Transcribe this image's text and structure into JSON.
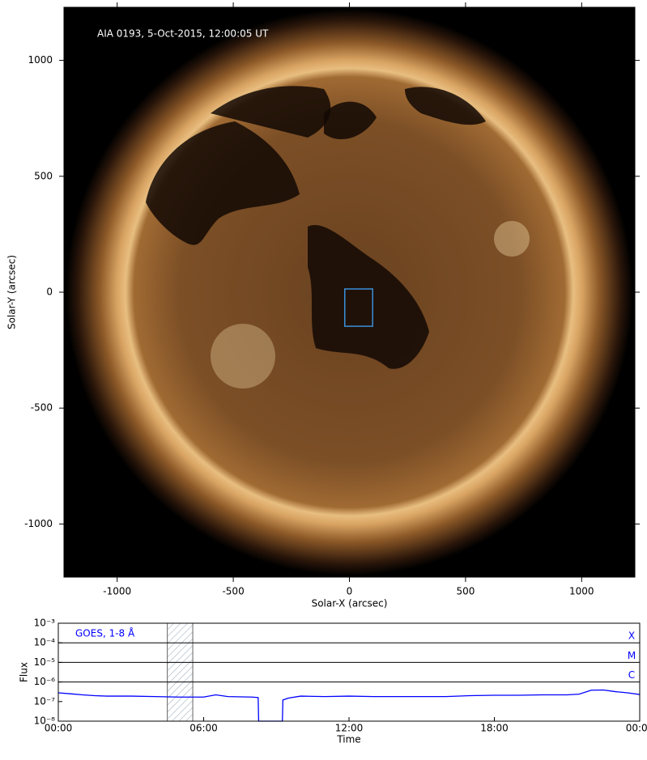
{
  "chart_data": [
    {
      "type": "image",
      "title": "AIA 0193, 5-Oct-2015, 12:00:05 UT",
      "xlabel": "Solar-X (arcsec)",
      "ylabel": "Solar-Y (arcsec)",
      "xlim": [
        -1229,
        1229
      ],
      "ylim": [
        -1229,
        1229
      ],
      "xticks": [
        -1000,
        -500,
        0,
        500,
        1000
      ],
      "yticks": [
        -1000,
        -500,
        0,
        500,
        1000
      ],
      "region": {
        "x": [
          -20,
          100
        ],
        "y": [
          -147,
          14
        ],
        "color": "#3a8fd9"
      }
    },
    {
      "type": "line",
      "xlabel": "Time",
      "ylabel": "Flux",
      "log_y": true,
      "xlim": [
        0,
        24
      ],
      "ylim": [
        1e-08,
        0.001
      ],
      "xticks": [
        {
          "value": 0,
          "label": "00:00"
        },
        {
          "value": 6,
          "label": "06:00"
        },
        {
          "value": 12,
          "label": "12:00"
        },
        {
          "value": 18,
          "label": "18:00"
        },
        {
          "value": 24,
          "label": "00:00"
        }
      ],
      "yticks": [
        {
          "value": 1e-08,
          "label": "10⁻⁸"
        },
        {
          "value": 1e-07,
          "label": "10⁻⁷"
        },
        {
          "value": 1e-06,
          "label": "10⁻⁶"
        },
        {
          "value": 1e-05,
          "label": "10⁻⁵"
        },
        {
          "value": 0.0001,
          "label": "10⁻⁴"
        },
        {
          "value": 0.001,
          "label": "10⁻³"
        }
      ],
      "flare_levels": [
        {
          "value": 0.0001,
          "label": "X"
        },
        {
          "value": 1e-05,
          "label": "M"
        },
        {
          "value": 1e-06,
          "label": "C"
        }
      ],
      "shaded": [
        4.5,
        5.55
      ],
      "x": [
        0,
        0.5,
        1,
        1.5,
        2,
        3,
        4,
        5,
        6,
        6.5,
        7,
        8,
        8.25,
        8.27,
        9.25,
        9.27,
        9.5,
        10,
        11,
        12,
        13,
        14,
        15,
        16,
        17,
        18,
        19,
        20,
        21,
        21.5,
        22,
        22.5,
        23,
        23.5,
        24
      ],
      "series": [
        {
          "name": "GOES, 1-8 Å",
          "color": "#0000ff",
          "values": [
            2.8e-07,
            2.5e-07,
            2.2e-07,
            2e-07,
            1.9e-07,
            1.9e-07,
            1.8e-07,
            1.7e-07,
            1.7e-07,
            2.2e-07,
            1.8e-07,
            1.7e-07,
            1.6e-07,
            1e-08,
            1e-08,
            1.2e-07,
            1.5e-07,
            1.9e-07,
            1.8e-07,
            1.9e-07,
            1.8e-07,
            1.8e-07,
            1.8e-07,
            1.8e-07,
            2e-07,
            2.1e-07,
            2.1e-07,
            2.2e-07,
            2.2e-07,
            2.4e-07,
            3.8e-07,
            3.9e-07,
            3.2e-07,
            2.8e-07,
            2.3e-07
          ]
        }
      ]
    }
  ]
}
